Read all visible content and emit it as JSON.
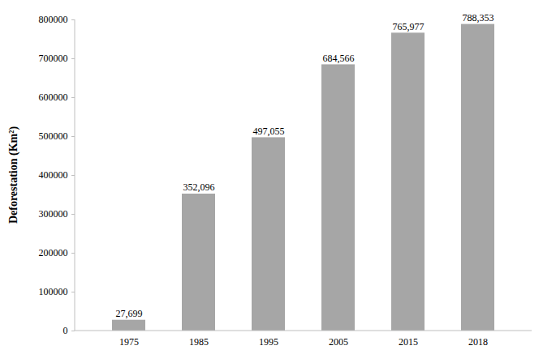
{
  "chart_data": {
    "type": "bar",
    "y_label": "Deforestation (Km²)",
    "categories": [
      "1975",
      "1985",
      "1995",
      "2005",
      "2015",
      "2018"
    ],
    "values": [
      27699,
      352096,
      497055,
      684566,
      765977,
      788353
    ],
    "value_labels": [
      "27,699",
      "352,096",
      "497,055",
      "684,566",
      "765,977",
      "788,353"
    ],
    "color": "#a6a6a6",
    "ylim": [
      0,
      800000
    ],
    "yticks": [
      0,
      100000,
      200000,
      300000,
      400000,
      500000,
      600000,
      700000,
      800000
    ],
    "grid": false,
    "data_labels": true
  }
}
